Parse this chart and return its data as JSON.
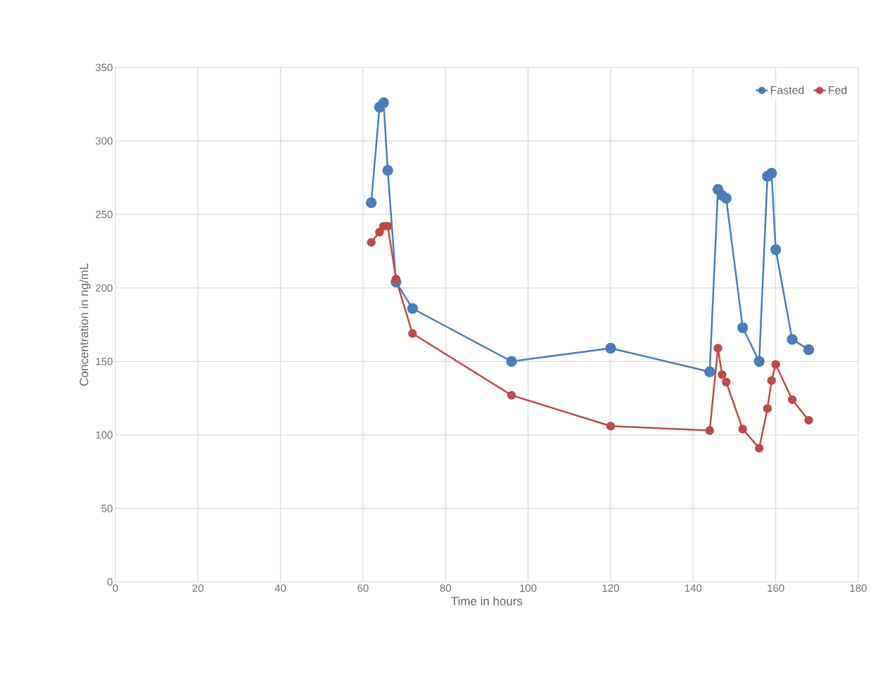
{
  "chart_data": {
    "type": "line",
    "xlabel": "Time in hours",
    "ylabel": "Concentration in ng/mL",
    "xlim": [
      0,
      180
    ],
    "xticks": [
      0,
      20,
      40,
      60,
      80,
      100,
      120,
      140,
      160,
      180
    ],
    "ylim": [
      0,
      350
    ],
    "yticks": [
      0,
      50,
      100,
      150,
      200,
      250,
      300,
      350
    ],
    "grid": true,
    "legend": "top right",
    "marker": "circle",
    "line_style": "solid",
    "x": [
      62,
      64,
      65,
      66,
      68,
      72,
      96,
      120,
      144,
      146,
      147,
      148,
      152,
      156,
      158,
      159,
      160,
      164,
      168
    ],
    "series": [
      {
        "name": "Fasted",
        "color": "#4a7ebb",
        "values": [
          258,
          323,
          326,
          280,
          204,
          186,
          150,
          159,
          143,
          267,
          263,
          261,
          173,
          150,
          276,
          278,
          226,
          165,
          158
        ]
      },
      {
        "name": "Fed",
        "color": "#be4b48",
        "values": [
          231,
          238,
          242,
          242,
          206,
          169,
          127,
          106,
          103,
          159,
          141,
          136,
          104,
          91,
          118,
          137,
          148,
          124,
          110
        ]
      }
    ]
  }
}
